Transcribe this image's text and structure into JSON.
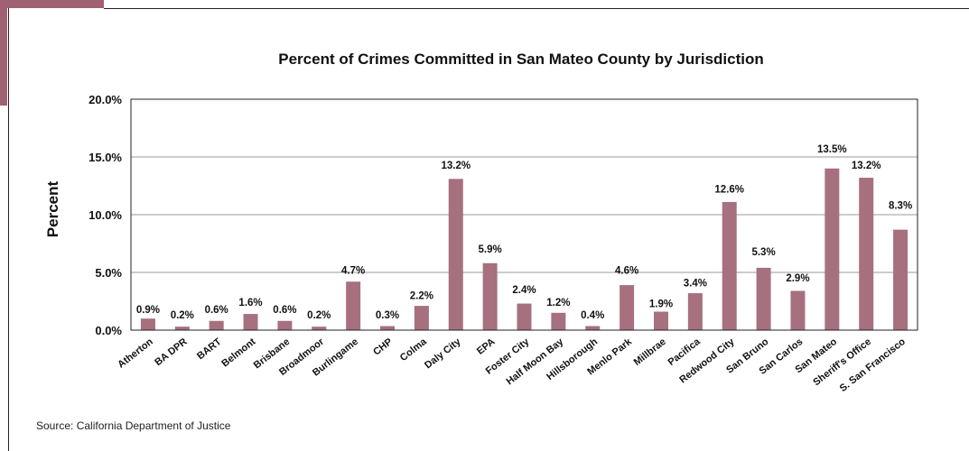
{
  "chart_data": {
    "type": "bar",
    "title": "Percent of Crimes Committed in San Mateo County by Jurisdiction",
    "ylabel": "Percent",
    "xlabel": "",
    "ylim": [
      0,
      20
    ],
    "yticks": [
      "0.0%",
      "5.0%",
      "10.0%",
      "15.0%",
      "20.0%"
    ],
    "grid": true,
    "bar_color": "#a6707f",
    "categories": [
      "Atherton",
      "BA DPR",
      "BART",
      "Belmont",
      "Brisbane",
      "Broadmoor",
      "Burlingame",
      "CHP",
      "Colma",
      "Daly City",
      "EPA",
      "Foster City",
      "Half Moon Bay",
      "Hillsborough",
      "Menlo Park",
      "Millbrae",
      "Pacifica",
      "Redwood City",
      "San Bruno",
      "San Carlos",
      "San Mateo",
      "Sheriff's Office",
      "S. San Francisco"
    ],
    "values": [
      0.9,
      0.2,
      0.6,
      1.6,
      0.6,
      0.2,
      4.7,
      0.3,
      2.2,
      13.2,
      5.9,
      2.4,
      1.2,
      0.4,
      4.6,
      1.9,
      3.4,
      12.6,
      5.3,
      2.9,
      13.5,
      13.2,
      8.3
    ],
    "bar_heights": [
      1.0,
      0.3,
      0.8,
      1.4,
      0.8,
      0.3,
      4.2,
      0.35,
      2.1,
      13.1,
      5.8,
      2.3,
      1.5,
      0.35,
      3.9,
      1.6,
      3.2,
      11.1,
      5.4,
      3.4,
      14.0,
      13.2,
      8.7
    ],
    "data_labels": [
      "0.9%",
      "0.2%",
      "0.6%",
      "1.6%",
      "0.6%",
      "0.2%",
      "4.7%",
      "0.3%",
      "2.2%",
      "13.2%",
      "5.9%",
      "2.4%",
      "1.2%",
      "0.4%",
      "4.6%",
      "1.9%",
      "3.4%",
      "12.6%",
      "5.3%",
      "2.9%",
      "13.5%",
      "13.2%",
      "8.3%"
    ],
    "label_values": [
      1.5,
      1.0,
      1.5,
      2.1,
      1.5,
      1.0,
      4.9,
      1.0,
      2.7,
      14.0,
      6.7,
      3.2,
      2.1,
      1.0,
      4.9,
      2.0,
      3.8,
      11.9,
      6.5,
      4.2,
      15.4,
      14.0,
      10.5
    ]
  },
  "source": "Source: California Department of Justice"
}
